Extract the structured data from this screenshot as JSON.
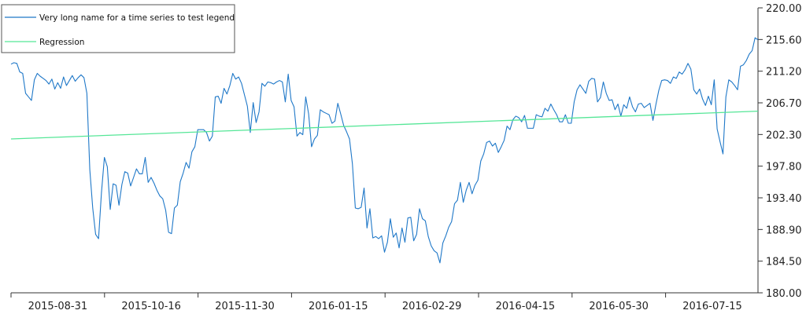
{
  "chart_data": {
    "type": "line",
    "title": "",
    "xlabel": "",
    "ylabel": "",
    "ylim": [
      180.0,
      220.0
    ],
    "y_ticks": [
      "220.00",
      "215.60",
      "211.20",
      "206.70",
      "202.30",
      "197.80",
      "193.40",
      "188.90",
      "184.50",
      "180.00"
    ],
    "x_ticks": [
      "2015-08-31",
      "2015-10-16",
      "2015-11-30",
      "2016-01-15",
      "2016-02-29",
      "2016-04-15",
      "2016-05-30",
      "2016-07-15"
    ],
    "grid": false,
    "legend_position": "top-left",
    "series": [
      {
        "name": "Very long name for a time series to test legend",
        "color": "#1f78c8",
        "values": [
          212.1,
          212.3,
          212.2,
          211.0,
          210.8,
          208.0,
          207.5,
          207.0,
          209.9,
          210.8,
          210.4,
          210.1,
          209.8,
          209.3,
          210.0,
          208.6,
          209.5,
          208.7,
          210.3,
          209.1,
          209.8,
          210.5,
          209.7,
          210.2,
          210.6,
          210.2,
          208.0,
          197.3,
          191.9,
          188.2,
          187.6,
          194.1,
          199.0,
          197.7,
          191.7,
          195.3,
          195.1,
          192.3,
          195.2,
          197.0,
          196.8,
          195.0,
          196.2,
          197.4,
          196.7,
          196.7,
          199.0,
          195.5,
          196.2,
          195.4,
          194.4,
          193.6,
          193.2,
          191.6,
          188.5,
          188.3,
          191.9,
          192.3,
          195.6,
          196.8,
          198.3,
          197.5,
          199.8,
          200.5,
          202.9,
          202.9,
          202.9,
          202.5,
          201.3,
          202.0,
          207.5,
          207.6,
          206.6,
          208.7,
          207.9,
          209.1,
          210.8,
          210.0,
          210.3,
          209.4,
          207.8,
          206.2,
          202.5,
          206.7,
          203.9,
          205.4,
          209.4,
          209.0,
          209.6,
          209.5,
          209.3,
          209.6,
          209.8,
          209.6,
          206.8,
          210.7,
          207.0,
          206.1,
          202.0,
          202.5,
          202.2,
          207.5,
          205.1,
          200.5,
          201.6,
          202.1,
          205.7,
          205.4,
          205.2,
          205.0,
          203.8,
          204.1,
          206.6,
          205.1,
          203.5,
          202.6,
          201.6,
          198.1,
          191.9,
          191.8,
          192.0,
          194.7,
          189.1,
          191.8,
          187.7,
          187.9,
          187.6,
          188.0,
          185.7,
          187.1,
          190.4,
          187.8,
          188.4,
          186.3,
          189.1,
          187.1,
          190.5,
          190.6,
          187.3,
          188.2,
          191.8,
          190.4,
          190.1,
          187.9,
          186.6,
          185.9,
          185.6,
          184.2,
          187.0,
          188.0,
          189.2,
          190.0,
          192.5,
          193.0,
          195.5,
          192.7,
          194.4,
          195.5,
          193.9,
          195.1,
          195.8,
          198.5,
          199.5,
          201.1,
          201.3,
          200.6,
          201.0,
          199.7,
          200.5,
          201.4,
          203.4,
          202.9,
          204.3,
          204.8,
          204.6,
          204.0,
          204.9,
          203.1,
          203.1,
          203.1,
          205.0,
          204.8,
          204.7,
          205.9,
          205.5,
          206.5,
          205.7,
          205.0,
          204.0,
          204.0,
          205.0,
          203.8,
          203.8,
          206.8,
          208.5,
          209.2,
          208.6,
          208.0,
          209.7,
          210.1,
          210.0,
          206.8,
          207.4,
          209.6,
          208.0,
          207.0,
          207.1,
          205.7,
          206.5,
          204.8,
          206.4,
          205.9,
          207.5,
          206.1,
          205.4,
          206.5,
          206.6,
          206.0,
          206.3,
          206.6,
          204.2,
          206.4,
          208.4,
          209.8,
          209.9,
          209.8,
          209.4,
          210.3,
          210.1,
          211.0,
          210.7,
          211.3,
          212.2,
          211.4,
          208.5,
          207.9,
          208.6,
          207.2,
          206.3,
          207.6,
          206.4,
          209.9,
          203.0,
          201.2,
          199.5,
          207.5,
          209.9,
          209.6,
          209.1,
          208.5,
          211.8,
          212.0,
          212.6,
          213.5,
          214.0,
          215.8,
          215.5
        ]
      },
      {
        "name": "Regression",
        "color": "#55e697",
        "values": [
          201.6,
          205.5
        ]
      }
    ]
  }
}
